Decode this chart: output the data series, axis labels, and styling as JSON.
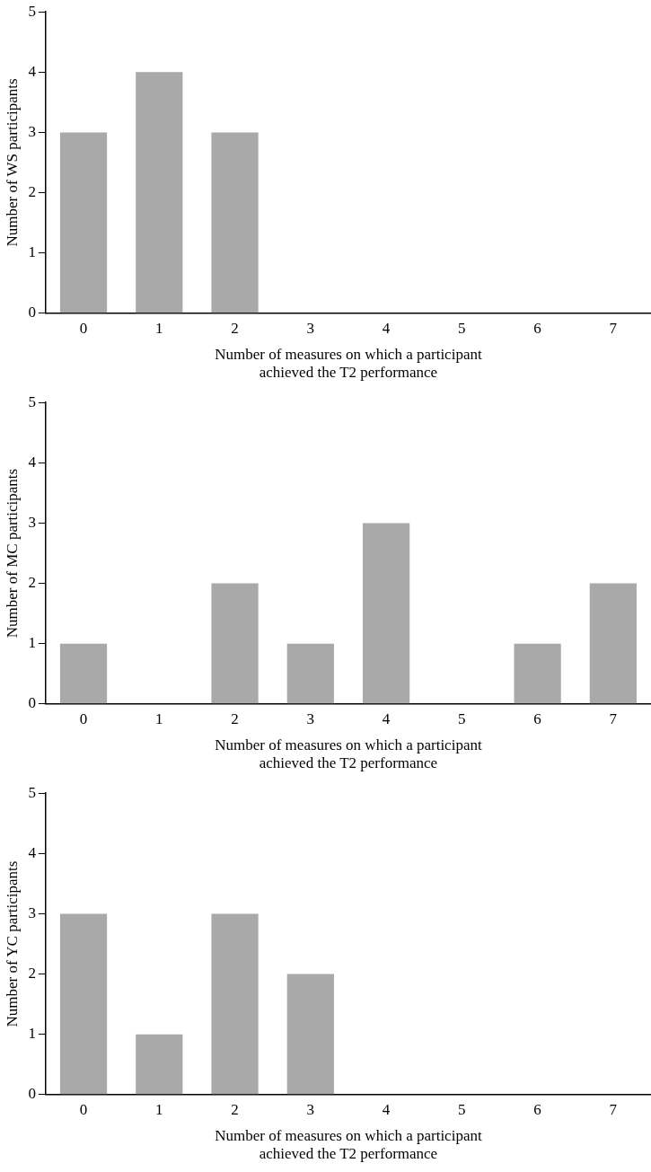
{
  "chart_data": [
    {
      "type": "bar",
      "xlabel": "Number of measures on which a participant\nachieved the T2 performance",
      "ylabel": "Number of WS participants",
      "categories": [
        "0",
        "1",
        "2",
        "3",
        "4",
        "5",
        "6",
        "7"
      ],
      "values": [
        3,
        4,
        3,
        0,
        0,
        0,
        0,
        0
      ],
      "color": "#a9a9a9",
      "ylim": [
        0,
        5
      ],
      "yticks": [
        0,
        1,
        2,
        3,
        4,
        5
      ],
      "grid": false
    },
    {
      "type": "bar",
      "xlabel": "Number of measures on which a participant\nachieved the T2 performance",
      "ylabel": "Number of MC participants",
      "categories": [
        "0",
        "1",
        "2",
        "3",
        "4",
        "5",
        "6",
        "7"
      ],
      "values": [
        1,
        0,
        2,
        1,
        3,
        0,
        1,
        2
      ],
      "color": "#a9a9a9",
      "ylim": [
        0,
        5
      ],
      "yticks": [
        0,
        1,
        2,
        3,
        4,
        5
      ],
      "grid": false
    },
    {
      "type": "bar",
      "xlabel": "Number of measures on which a participant\nachieved the T2 performance",
      "ylabel": "Number of YC participants",
      "categories": [
        "0",
        "1",
        "2",
        "3",
        "4",
        "5",
        "6",
        "7"
      ],
      "values": [
        3,
        1,
        3,
        2,
        0,
        0,
        0,
        0
      ],
      "color": "#a9a9a9",
      "ylim": [
        0,
        5
      ],
      "yticks": [
        0,
        1,
        2,
        3,
        4,
        5
      ],
      "grid": false
    }
  ]
}
